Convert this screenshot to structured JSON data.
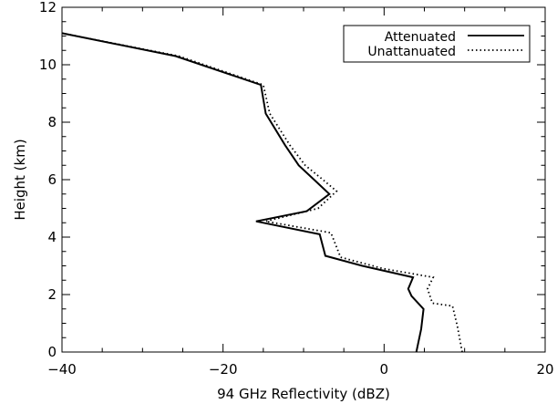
{
  "chart_data": {
    "type": "line",
    "title": "",
    "xlabel": "94 GHz Reflectivity (dBZ)",
    "ylabel": "Height (km)",
    "xlim": [
      -40,
      20
    ],
    "ylim": [
      0,
      12
    ],
    "xticks": [
      -40,
      -20,
      0,
      20
    ],
    "yticks": [
      0,
      2,
      4,
      6,
      8,
      10,
      12
    ],
    "grid": false,
    "legend_position": "top-right",
    "series": [
      {
        "name": "Attenuated",
        "style": "solid",
        "color": "#000000",
        "points": [
          [
            -40.0,
            11.1
          ],
          [
            -25.9,
            10.3
          ],
          [
            -15.3,
            9.3
          ],
          [
            -14.7,
            8.3
          ],
          [
            -12.3,
            7.2
          ],
          [
            -10.6,
            6.5
          ],
          [
            -8.7,
            6.0
          ],
          [
            -6.8,
            5.5
          ],
          [
            -9.6,
            4.9
          ],
          [
            -15.9,
            4.55
          ],
          [
            -8.0,
            4.1
          ],
          [
            -7.3,
            3.35
          ],
          [
            -2.7,
            3.0
          ],
          [
            3.6,
            2.6
          ],
          [
            3.0,
            2.2
          ],
          [
            3.4,
            1.95
          ],
          [
            4.9,
            1.5
          ],
          [
            4.6,
            0.8
          ],
          [
            4.0,
            0.0
          ]
        ]
      },
      {
        "name": "Unattanuated",
        "style": "dotted",
        "color": "#000000",
        "points": [
          [
            -40.0,
            11.1
          ],
          [
            -25.5,
            10.3
          ],
          [
            -15.0,
            9.3
          ],
          [
            -14.2,
            8.3
          ],
          [
            -11.7,
            7.2
          ],
          [
            -9.8,
            6.5
          ],
          [
            -7.6,
            6.0
          ],
          [
            -5.9,
            5.6
          ],
          [
            -8.2,
            5.0
          ],
          [
            -14.7,
            4.55
          ],
          [
            -6.6,
            4.15
          ],
          [
            -5.4,
            3.3
          ],
          [
            -0.1,
            2.9
          ],
          [
            6.1,
            2.6
          ],
          [
            5.4,
            2.2
          ],
          [
            6.0,
            1.7
          ],
          [
            8.5,
            1.6
          ],
          [
            9.1,
            0.9
          ],
          [
            9.7,
            0.0
          ]
        ]
      }
    ]
  }
}
